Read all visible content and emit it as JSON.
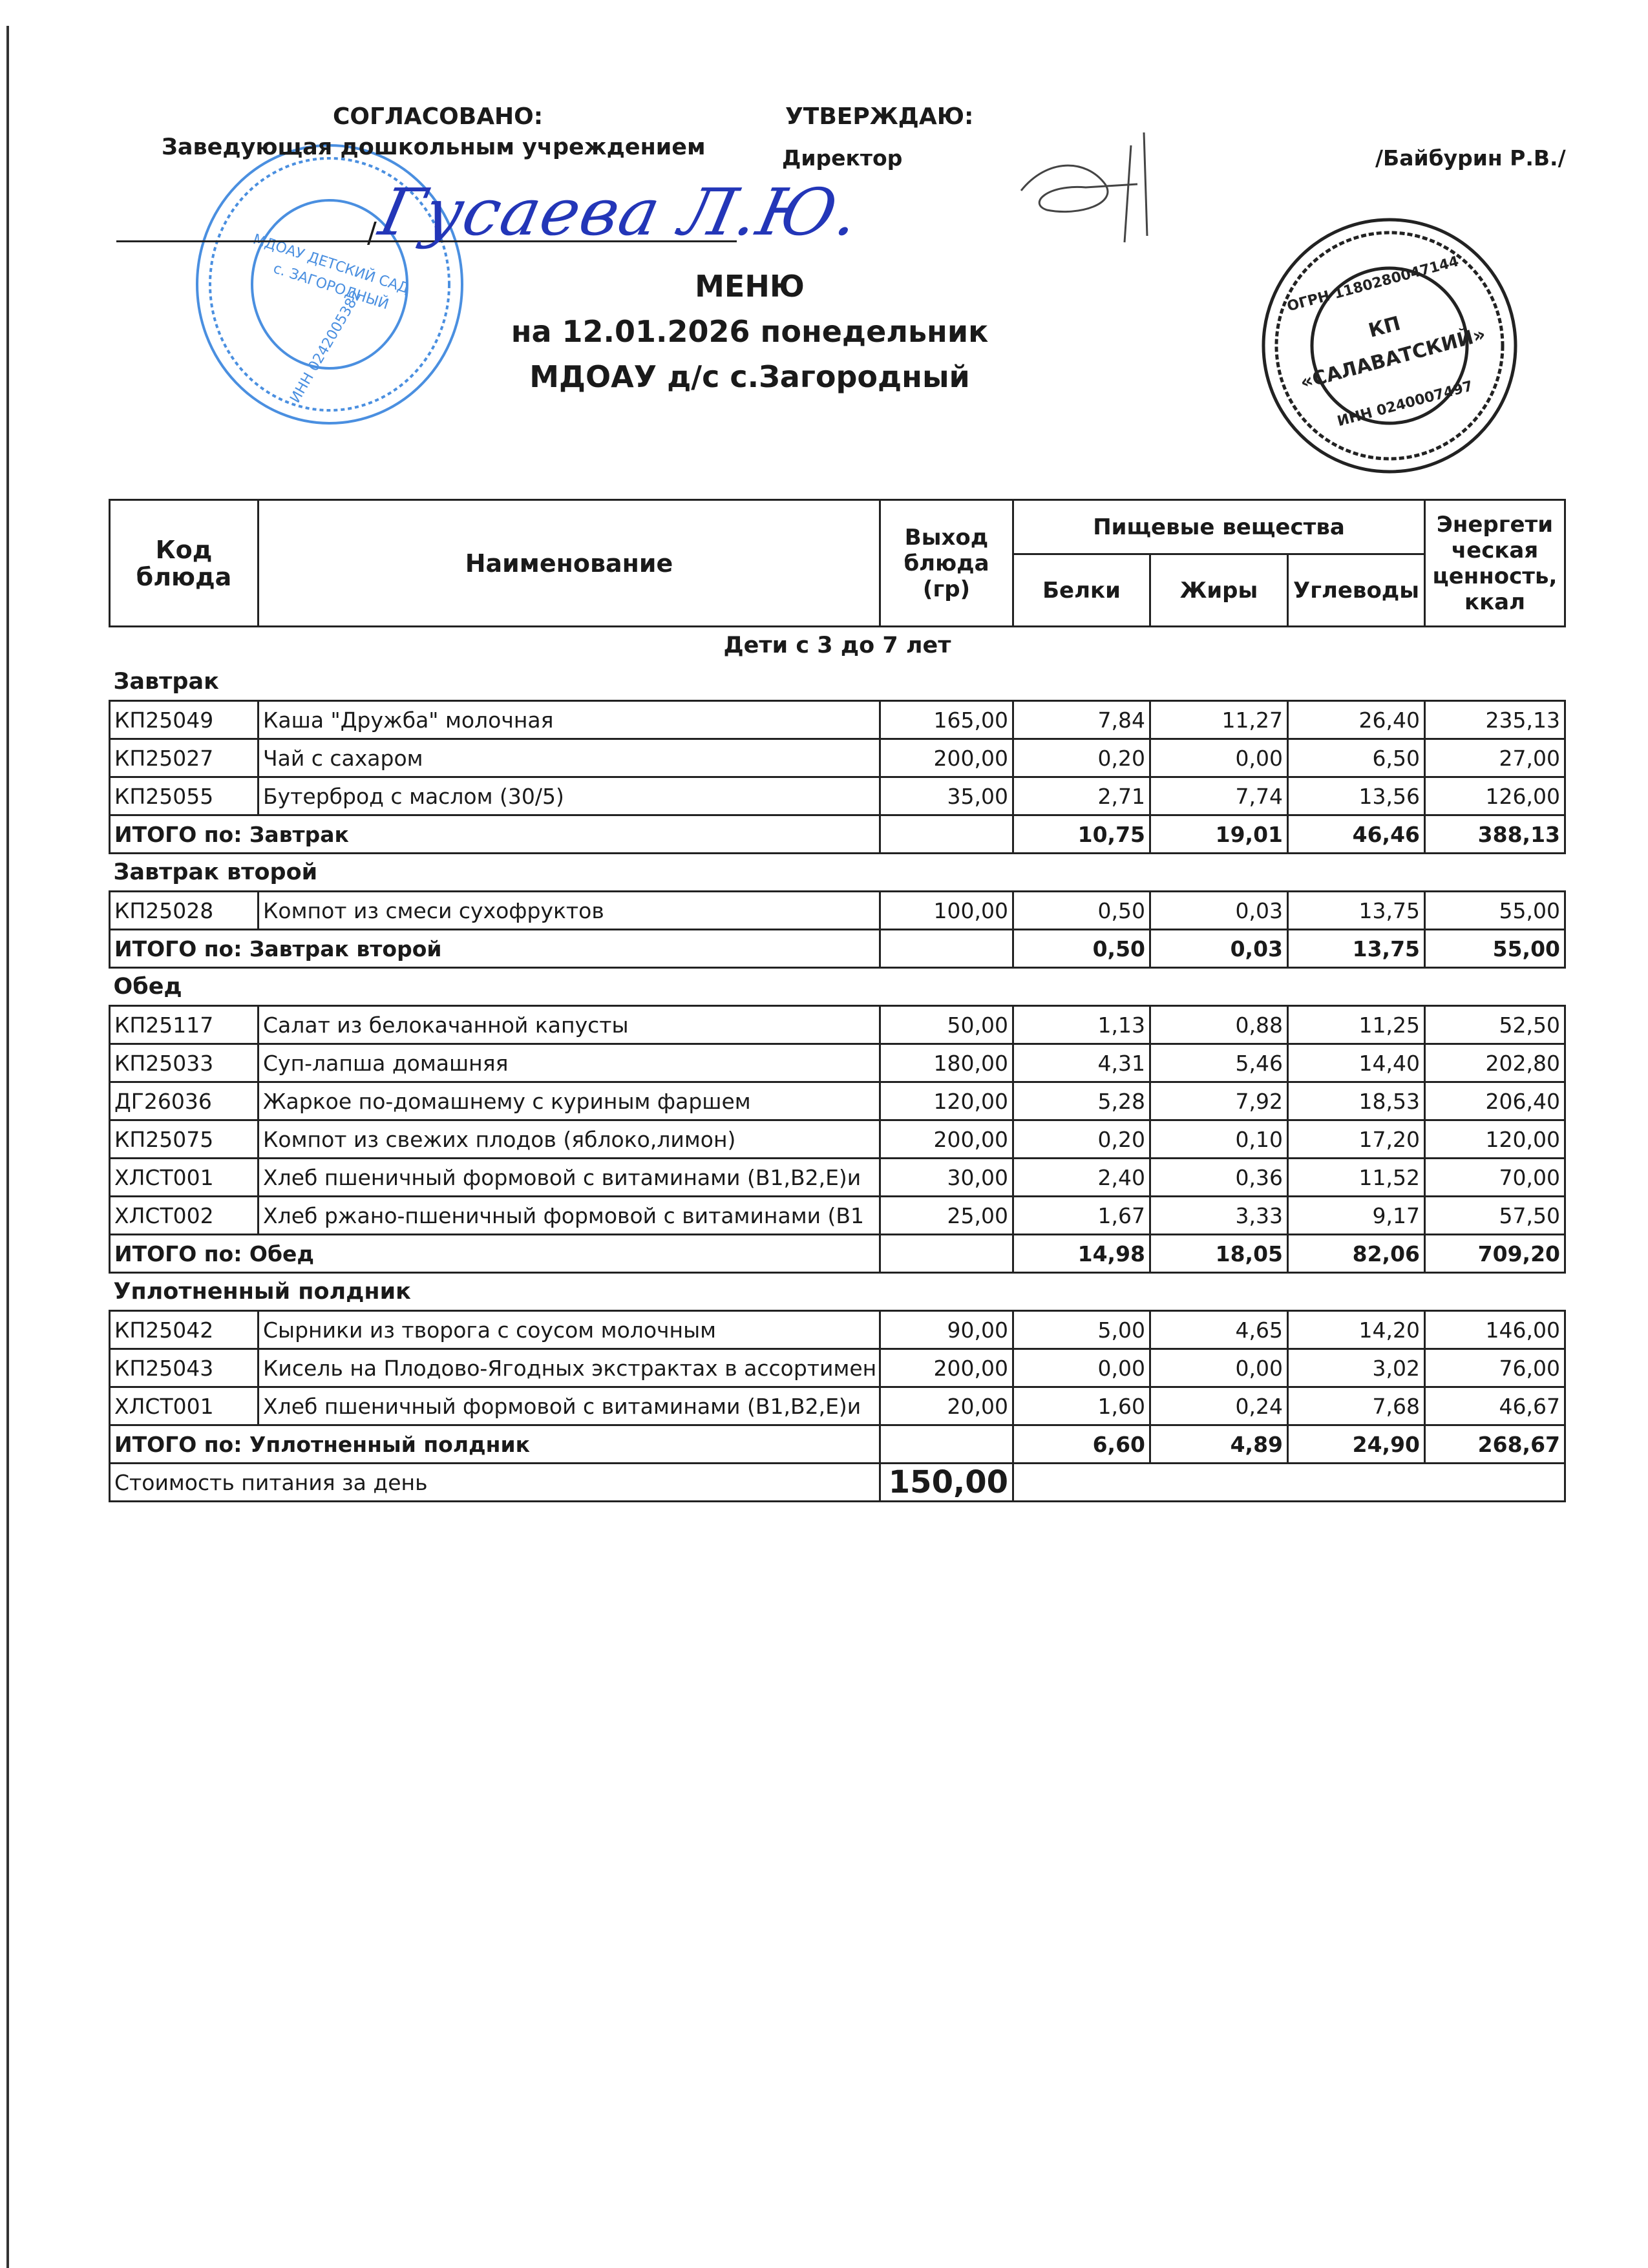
{
  "header": {
    "approved_label": "СОГЛАСОВАНО:",
    "approved_position": "Заведующая дошкольным учреждением",
    "approved_signature": "Гусаева Л.Ю.",
    "confirm_label": "УТВЕРЖДАЮ:",
    "confirm_position": "Директор",
    "confirm_name": "/Байбурин Р.В./"
  },
  "title": {
    "line1": "МЕНЮ",
    "line2": "на 12.01.2026  понедельник",
    "line3": "МДОАУ д/с с.Загородный"
  },
  "stamps": {
    "blue": [
      "МДОАУ ДЕТСКИЙ САД",
      "с. ЗАГОРОДНЫЙ",
      "ИНН 0242005382"
    ],
    "black": [
      "КП",
      "«САЛАВАТСКИЙ»",
      "ОГРН 1180280047144",
      "ИНН 0240007497"
    ],
    "blue_color": "#4a8fe0",
    "black_color": "#222222"
  },
  "table": {
    "headers": {
      "code": "Код блюда",
      "name": "Наименование",
      "yield": "Выход блюда (гр)",
      "nutrients": "Пищевые вещества",
      "energy": "Энергети ческая ценность, ккал",
      "protein": "Белки",
      "fat": "Жиры",
      "carbs": "Углеводы"
    },
    "group": "Дети с 3 до 7 лет",
    "sections": [
      {
        "title": "Завтрак",
        "rows": [
          [
            "КП25049",
            "Каша \"Дружба\" молочная",
            "165,00",
            "7,84",
            "11,27",
            "26,40",
            "235,13"
          ],
          [
            "КП25027",
            "Чай с сахаром",
            "200,00",
            "0,20",
            "0,00",
            "6,50",
            "27,00"
          ],
          [
            "КП25055",
            "Бутерброд с маслом (30/5)",
            "35,00",
            "2,71",
            "7,74",
            "13,56",
            "126,00"
          ]
        ],
        "total": [
          "ИТОГО по: Завтрак",
          "",
          "10,75",
          "19,01",
          "46,46",
          "388,13"
        ]
      },
      {
        "title": "Завтрак второй",
        "rows": [
          [
            "КП25028",
            "Компот из смеси сухофруктов",
            "100,00",
            "0,50",
            "0,03",
            "13,75",
            "55,00"
          ]
        ],
        "total": [
          "ИТОГО по: Завтрак второй",
          "",
          "0,50",
          "0,03",
          "13,75",
          "55,00"
        ]
      },
      {
        "title": "Обед",
        "rows": [
          [
            "КП25117",
            "Салат из белокачанной капусты",
            "50,00",
            "1,13",
            "0,88",
            "11,25",
            "52,50"
          ],
          [
            "КП25033",
            "Суп-лапша домашняя",
            "180,00",
            "4,31",
            "5,46",
            "14,40",
            "202,80"
          ],
          [
            "ДГ26036",
            "Жаркое по-домашнему с куриным фаршем",
            "120,00",
            "5,28",
            "7,92",
            "18,53",
            "206,40"
          ],
          [
            "КП25075",
            "Компот из свежих плодов (яблоко,лимон)",
            "200,00",
            "0,20",
            "0,10",
            "17,20",
            "120,00"
          ],
          [
            "ХЛСТ001",
            "Хлеб пшеничный формовой с витаминами (В1,В2,Е)и",
            "30,00",
            "2,40",
            "0,36",
            "11,52",
            "70,00"
          ],
          [
            "ХЛСТ002",
            "Хлеб ржано-пшеничный формовой с витаминами (В1",
            "25,00",
            "1,67",
            "3,33",
            "9,17",
            "57,50"
          ]
        ],
        "total": [
          "ИТОГО по: Обед",
          "",
          "14,98",
          "18,05",
          "82,06",
          "709,20"
        ]
      },
      {
        "title": "Уплотненный полдник",
        "rows": [
          [
            "КП25042",
            "Сырники из творога с соусом молочным",
            "90,00",
            "5,00",
            "4,65",
            "14,20",
            "146,00"
          ],
          [
            "КП25043",
            "Кисель на Плодово-Ягодных экстрактах в ассортимен",
            "200,00",
            "0,00",
            "0,00",
            "3,02",
            "76,00"
          ],
          [
            "ХЛСТ001",
            "Хлеб пшеничный формовой с витаминами (В1,В2,Е)и",
            "20,00",
            "1,60",
            "0,24",
            "7,68",
            "46,67"
          ]
        ],
        "total": [
          "ИТОГО по: Уплотненный полдник",
          "",
          "6,60",
          "4,89",
          "24,90",
          "268,67"
        ]
      }
    ],
    "cost_label": "Стоимость питания за день",
    "cost_value": "150,00"
  }
}
